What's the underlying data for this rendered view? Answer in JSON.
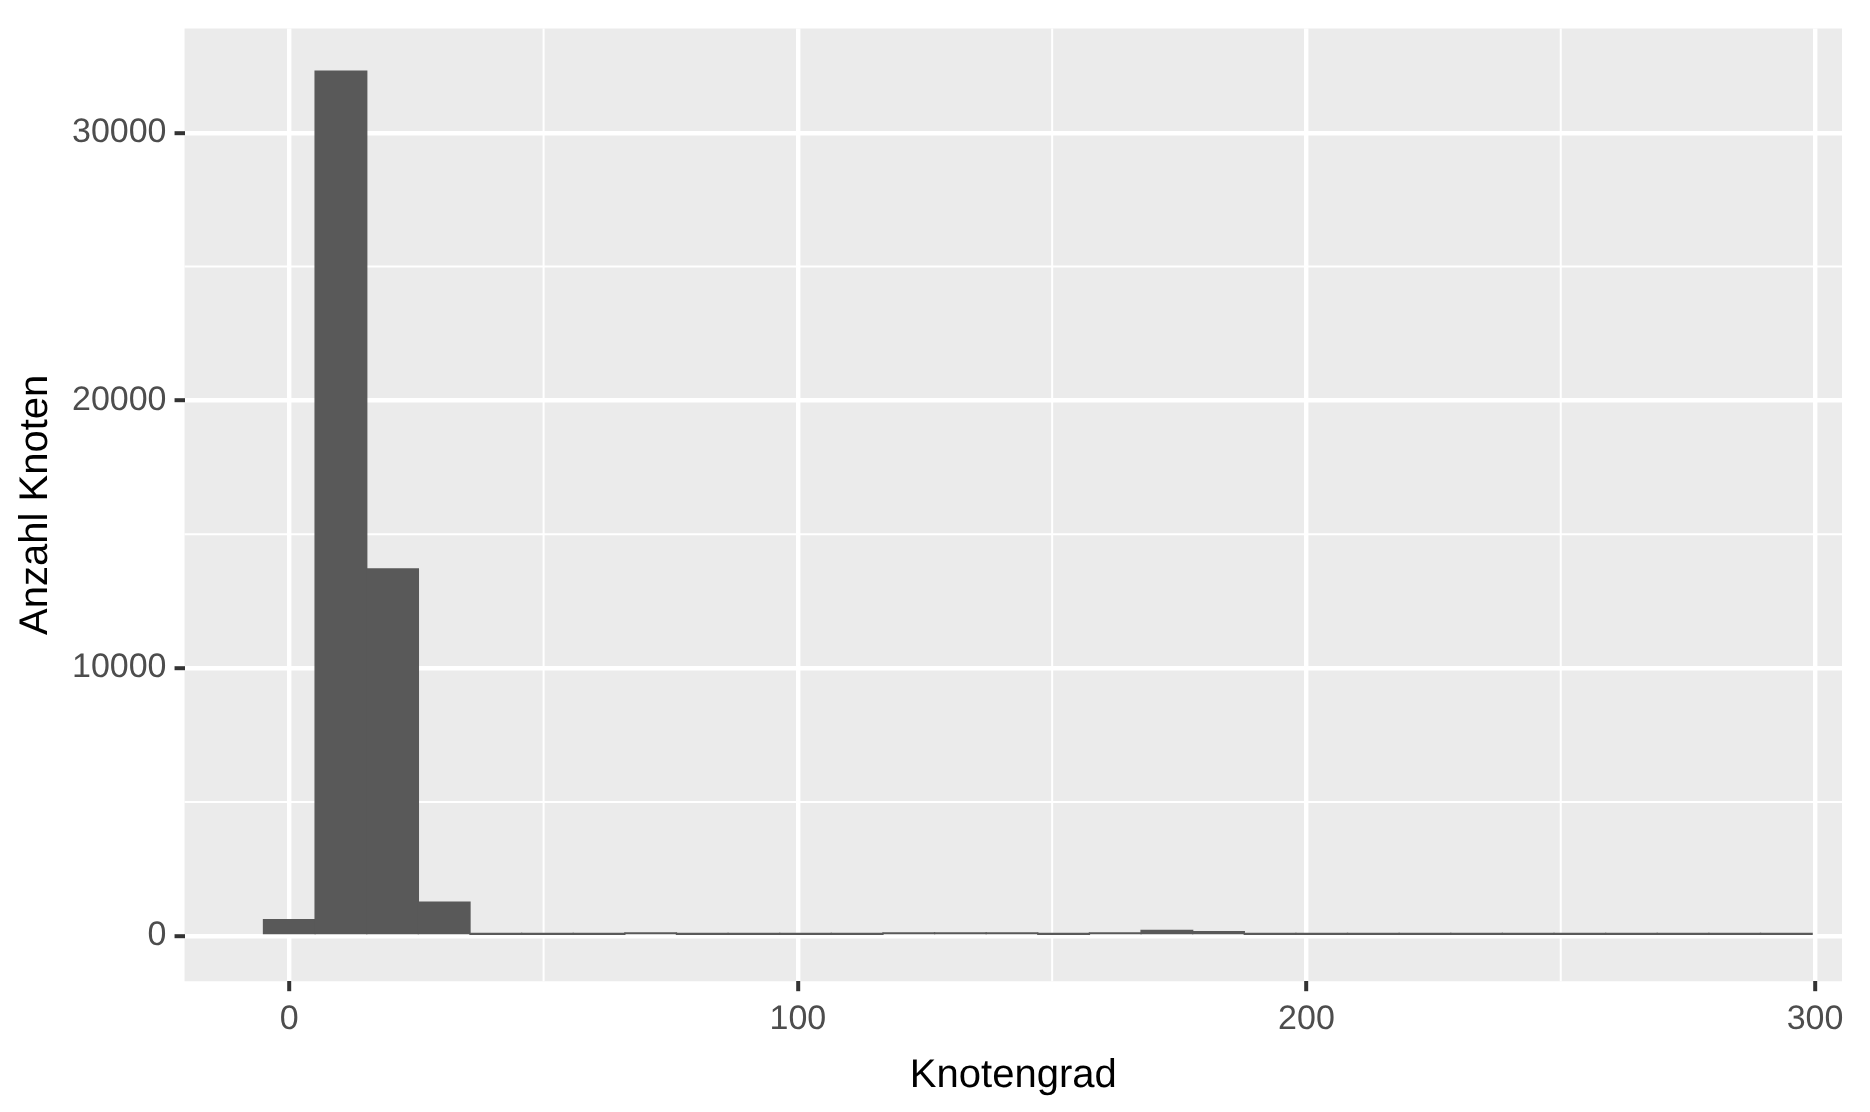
{
  "chart_data": {
    "type": "histogram",
    "xlabel": "Knotengrad",
    "ylabel": "Anzahl Knoten",
    "color": "#595959",
    "bins": [
      -5.1,
      5.1,
      15.2,
      25.4,
      35.5,
      45.7,
      55.8,
      66,
      76.1,
      86.3,
      96.4,
      106.6,
      116.7,
      126.9,
      137,
      147.2,
      157.3,
      167.5,
      177.6,
      187.8,
      197.9,
      208.1,
      218.2,
      228.4,
      238.5,
      248.7,
      258.8,
      269,
      279.1,
      289.3,
      299.4
    ],
    "values": [
      600,
      32300,
      13700,
      1250,
      50,
      50,
      50,
      100,
      50,
      50,
      50,
      50,
      100,
      100,
      100,
      50,
      100,
      200,
      150,
      50,
      50,
      50,
      50,
      50,
      50,
      50,
      50,
      50,
      50,
      50
    ],
    "xlim": [
      -20.6,
      305.3
    ],
    "ylim": [
      -1700,
      33900
    ],
    "xticks": [
      0,
      100,
      200,
      300
    ],
    "yticks": [
      0,
      10000,
      20000,
      30000
    ],
    "grid": true
  }
}
